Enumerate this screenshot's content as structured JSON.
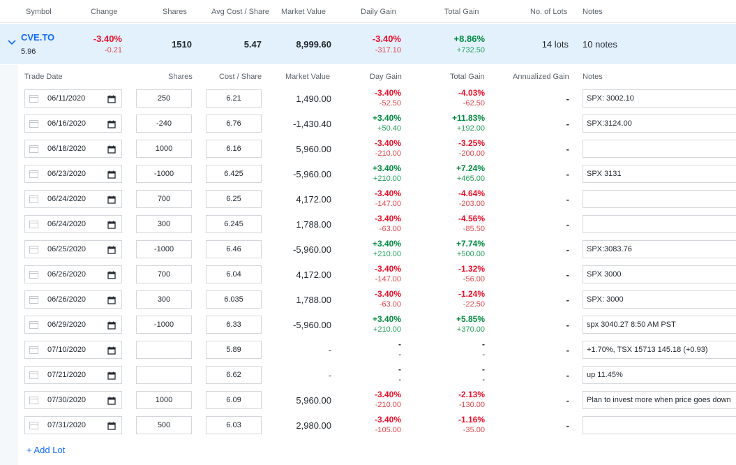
{
  "header": {
    "symbol": "Symbol",
    "change": "Change",
    "shares": "Shares",
    "avg_cost": "Avg Cost / Share",
    "market_value": "Market Value",
    "daily_gain": "Daily Gain",
    "total_gain": "Total Gain",
    "lots": "No. of Lots",
    "notes": "Notes"
  },
  "holding": {
    "symbol": "CVE.TO",
    "price": "5.96",
    "change_pct": "-3.40%",
    "change_abs": "-0.21",
    "shares": "1510",
    "avg_cost": "5.47",
    "market_value": "8,999.60",
    "daily_gain_pct": "-3.40%",
    "daily_gain_abs": "-317.10",
    "total_gain_pct": "+8.86%",
    "total_gain_abs": "+732.50",
    "lots": "14 lots",
    "notes": "10 notes"
  },
  "lot_header": {
    "trade_date": "Trade Date",
    "shares": "Shares",
    "cost": "Cost / Share",
    "market_value": "Market Value",
    "day_gain": "Day Gain",
    "total_gain": "Total Gain",
    "annualized": "Annualized Gain",
    "notes": "Notes"
  },
  "lots": [
    {
      "date": "06/11/2020",
      "shares": "250",
      "cost": "6.21",
      "mv": "1,490.00",
      "dg_pct": "-3.40%",
      "dg_abs": "-52.50",
      "tg_pct": "-4.03%",
      "tg_abs": "-62.50",
      "ann": "-",
      "note": "SPX: 3002.10"
    },
    {
      "date": "06/16/2020",
      "shares": "-240",
      "cost": "6.76",
      "mv": "-1,430.40",
      "dg_pct": "+3.40%",
      "dg_abs": "+50.40",
      "tg_pct": "+11.83%",
      "tg_abs": "+192.00",
      "ann": "-",
      "note": "SPX:3124.00"
    },
    {
      "date": "06/18/2020",
      "shares": "1000",
      "cost": "6.16",
      "mv": "5,960.00",
      "dg_pct": "-3.40%",
      "dg_abs": "-210.00",
      "tg_pct": "-3.25%",
      "tg_abs": "-200.00",
      "ann": "-",
      "note": ""
    },
    {
      "date": "06/23/2020",
      "shares": "-1000",
      "cost": "6.425",
      "mv": "-5,960.00",
      "dg_pct": "+3.40%",
      "dg_abs": "+210.00",
      "tg_pct": "+7.24%",
      "tg_abs": "+465.00",
      "ann": "-",
      "note": "SPX 3131"
    },
    {
      "date": "06/24/2020",
      "shares": "700",
      "cost": "6.25",
      "mv": "4,172.00",
      "dg_pct": "-3.40%",
      "dg_abs": "-147.00",
      "tg_pct": "-4.64%",
      "tg_abs": "-203.00",
      "ann": "-",
      "note": ""
    },
    {
      "date": "06/24/2020",
      "shares": "300",
      "cost": "6.245",
      "mv": "1,788.00",
      "dg_pct": "-3.40%",
      "dg_abs": "-63.00",
      "tg_pct": "-4.56%",
      "tg_abs": "-85.50",
      "ann": "-",
      "note": ""
    },
    {
      "date": "06/25/2020",
      "shares": "-1000",
      "cost": "6.46",
      "mv": "-5,960.00",
      "dg_pct": "+3.40%",
      "dg_abs": "+210.00",
      "tg_pct": "+7.74%",
      "tg_abs": "+500.00",
      "ann": "-",
      "note": "SPX:3083.76"
    },
    {
      "date": "06/26/2020",
      "shares": "700",
      "cost": "6.04",
      "mv": "4,172.00",
      "dg_pct": "-3.40%",
      "dg_abs": "-147.00",
      "tg_pct": "-1.32%",
      "tg_abs": "-56.00",
      "ann": "-",
      "note": "SPX 3000"
    },
    {
      "date": "06/26/2020",
      "shares": "300",
      "cost": "6.035",
      "mv": "1,788.00",
      "dg_pct": "-3.40%",
      "dg_abs": "-63.00",
      "tg_pct": "-1.24%",
      "tg_abs": "-22.50",
      "ann": "-",
      "note": "SPX: 3000"
    },
    {
      "date": "06/29/2020",
      "shares": "-1000",
      "cost": "6.33",
      "mv": "-5,960.00",
      "dg_pct": "+3.40%",
      "dg_abs": "+210.00",
      "tg_pct": "+5.85%",
      "tg_abs": "+370.00",
      "ann": "-",
      "note": "spx 3040.27 8:50 AM PST"
    },
    {
      "date": "07/10/2020",
      "shares": "",
      "cost": "5.89",
      "mv": "-",
      "dg_pct": "-",
      "dg_abs": "-",
      "tg_pct": "-",
      "tg_abs": "-",
      "ann": "-",
      "note": "+1.70%, TSX 15713 145.18 (+0.93)"
    },
    {
      "date": "07/21/2020",
      "shares": "",
      "cost": "6.62",
      "mv": "-",
      "dg_pct": "-",
      "dg_abs": "-",
      "tg_pct": "-",
      "tg_abs": "-",
      "ann": "-",
      "note": "up 11.45%"
    },
    {
      "date": "07/30/2020",
      "shares": "1000",
      "cost": "6.09",
      "mv": "5,960.00",
      "dg_pct": "-3.40%",
      "dg_abs": "-210.00",
      "tg_pct": "-2.13%",
      "tg_abs": "-130.00",
      "ann": "-",
      "note": "Plan to invest more when price goes down"
    },
    {
      "date": "07/31/2020",
      "shares": "500",
      "cost": "6.03",
      "mv": "2,980.00",
      "dg_pct": "-3.40%",
      "dg_abs": "-105.00",
      "tg_pct": "-1.16%",
      "tg_abs": "-35.00",
      "ann": "-",
      "note": ""
    }
  ],
  "add_lot": "+ Add Lot",
  "colors": {
    "accent": "#0f69ff",
    "gain": "#008a40",
    "loss": "#eb0f29",
    "row_highlight": "#e3f1fd"
  },
  "icons": {
    "expand": "chevron-down-icon",
    "date_field": "calendar-outline-icon",
    "date_picker": "calendar-icon"
  }
}
